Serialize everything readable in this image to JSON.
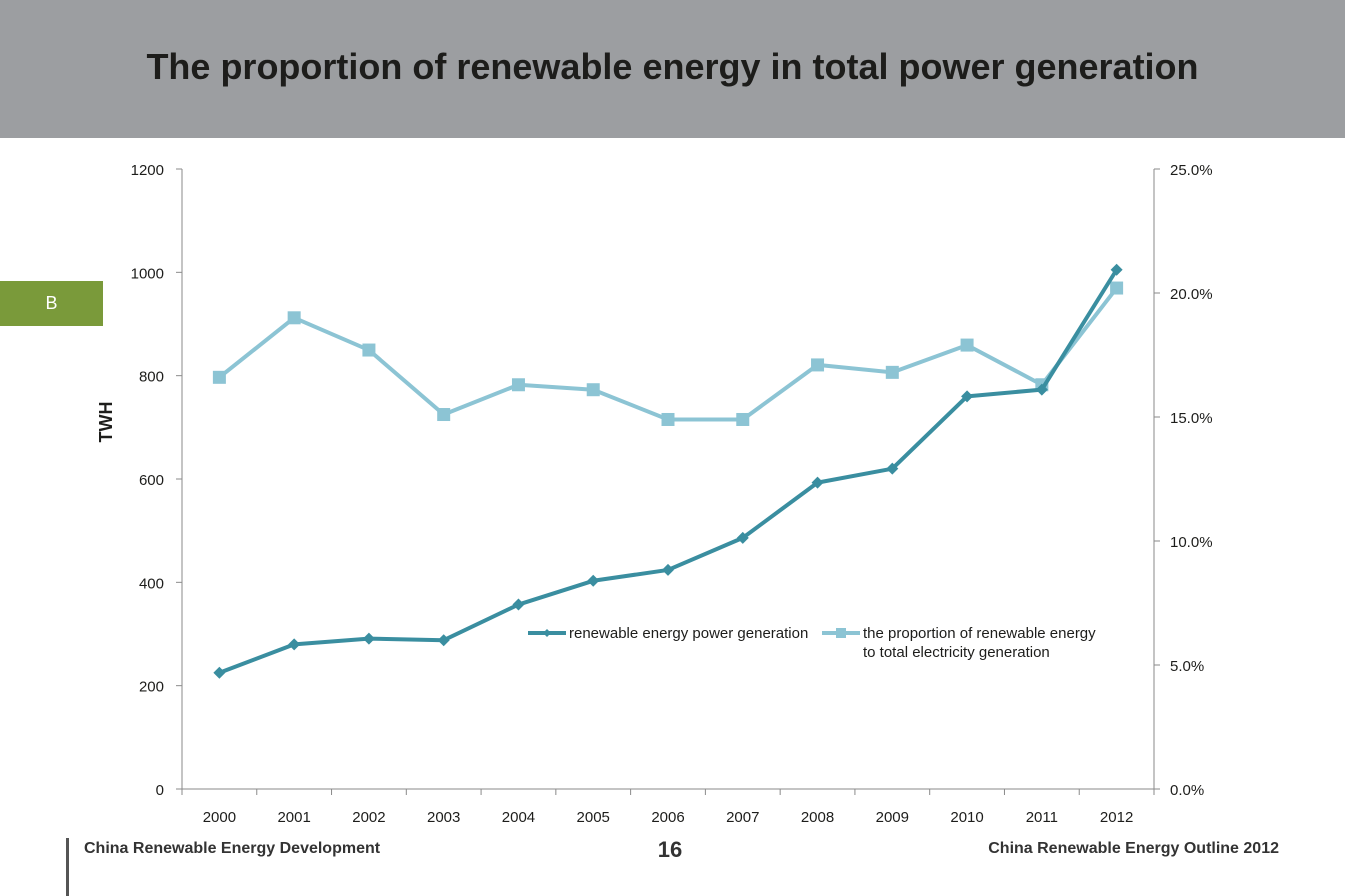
{
  "page": {
    "title": "The proportion of renewable energy in total power generation",
    "section_tab": "B"
  },
  "footer": {
    "left": "China Renewable Energy Development",
    "page_number": "16",
    "right": "China Renewable Energy Outline 2012"
  },
  "chart_data": {
    "type": "line",
    "title": "",
    "categories": [
      "2000",
      "2001",
      "2002",
      "2003",
      "2004",
      "2005",
      "2006",
      "2007",
      "2008",
      "2009",
      "2010",
      "2011",
      "2012"
    ],
    "ylabel": "TWH",
    "ylim": [
      0,
      1200
    ],
    "y_ticks": [
      "0",
      "200",
      "400",
      "600",
      "800",
      "1000",
      "1200"
    ],
    "y2lim": [
      0,
      25
    ],
    "y2_ticks": [
      "0.0%",
      "5.0%",
      "10.0%",
      "15.0%",
      "20.0%",
      "25.0%"
    ],
    "grid": false,
    "legend_position": "center-right",
    "series": [
      {
        "name": "renewable energy power generation",
        "axis": "left",
        "marker": "diamond",
        "color": "#3a8ea0",
        "values": [
          225,
          280,
          291,
          288,
          357,
          403,
          424,
          486,
          593,
          620,
          760,
          773,
          1005
        ]
      },
      {
        "name": "the proportion of renewable energy to total electricity generation",
        "axis": "right",
        "marker": "square",
        "color": "#8cc4d4",
        "values": [
          16.6,
          19.0,
          17.7,
          15.1,
          16.3,
          16.1,
          14.9,
          14.9,
          17.1,
          16.8,
          17.9,
          16.3,
          20.2
        ]
      }
    ],
    "legend_lines": [
      [
        "renewable energy power generation"
      ],
      [
        "the proportion of renewable energy",
        "to total electricity generation"
      ]
    ]
  },
  "colors": {
    "header_bg": "#9c9ea1",
    "tab_bg": "#7a9a3a",
    "series_dark": "#3a8ea0",
    "series_light": "#8cc4d4"
  }
}
